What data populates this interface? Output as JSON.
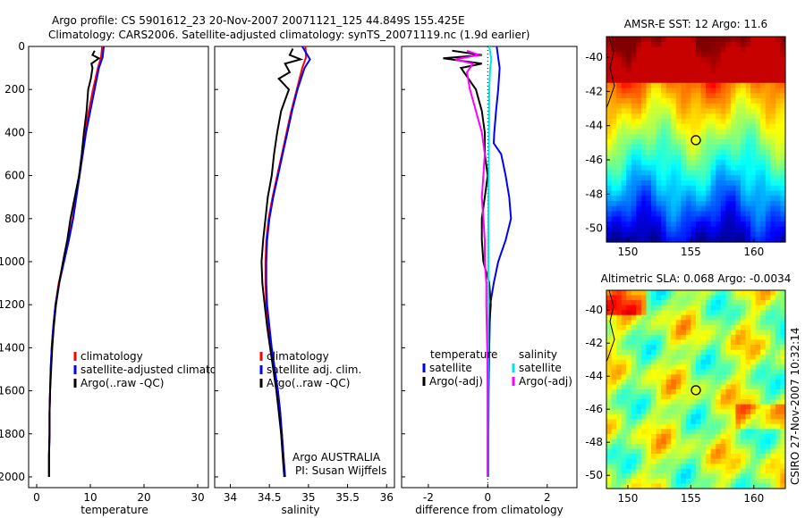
{
  "header": {
    "line1": "Argo profile: CS 5901612_23 20-Nov-2007 20071121_125 44.849S 155.425E",
    "line2": "Climatology: CARS2006. Satellite-adjusted climatology: synTS_20071119.nc (1.9d earlier)"
  },
  "credit": "CSIRO 27-Nov-2007 10:32:14",
  "chart_data": [
    {
      "type": "line",
      "xlabel": "temperature",
      "ylabel": "",
      "xlim": [
        -1.5,
        32
      ],
      "ylim": [
        2050,
        0
      ],
      "y_reversed": true,
      "xticks": [
        0,
        10,
        20,
        30
      ],
      "yticks": [
        0,
        200,
        400,
        600,
        800,
        1000,
        1200,
        1400,
        1600,
        1800,
        2000
      ],
      "legend": [
        "climatology",
        "satellite-adjusted climatology",
        "Argo(..raw -QC)"
      ],
      "series": [
        {
          "name": "climatology",
          "color": "#ff0000",
          "points": [
            [
              12.2,
              0
            ],
            [
              12.0,
              50
            ],
            [
              11.4,
              100
            ],
            [
              10.5,
              200
            ],
            [
              9.7,
              300
            ],
            [
              9.0,
              400
            ],
            [
              8.5,
              500
            ],
            [
              7.9,
              600
            ],
            [
              7.3,
              700
            ],
            [
              6.7,
              800
            ],
            [
              5.9,
              900
            ],
            [
              5.0,
              1000
            ],
            [
              4.1,
              1100
            ],
            [
              3.5,
              1200
            ],
            [
              3.1,
              1300
            ],
            [
              2.8,
              1400
            ],
            [
              2.6,
              1500
            ],
            [
              2.5,
              1600
            ],
            [
              2.4,
              1700
            ],
            [
              2.4,
              1800
            ],
            [
              2.3,
              1900
            ],
            [
              2.3,
              2000
            ]
          ]
        },
        {
          "name": "satellite-adjusted climatology",
          "color": "#0000ff",
          "points": [
            [
              12.5,
              0
            ],
            [
              12.3,
              50
            ],
            [
              11.6,
              100
            ],
            [
              10.8,
              200
            ],
            [
              10.0,
              300
            ],
            [
              9.2,
              400
            ],
            [
              8.6,
              500
            ],
            [
              8.0,
              600
            ],
            [
              7.4,
              700
            ],
            [
              6.8,
              800
            ],
            [
              6.0,
              900
            ],
            [
              5.1,
              1000
            ],
            [
              4.2,
              1100
            ],
            [
              3.5,
              1200
            ],
            [
              3.1,
              1300
            ],
            [
              2.8,
              1400
            ],
            [
              2.6,
              1500
            ],
            [
              2.5,
              1600
            ],
            [
              2.4,
              1700
            ],
            [
              2.4,
              1800
            ],
            [
              2.3,
              1900
            ],
            [
              2.3,
              2000
            ]
          ]
        },
        {
          "name": "Argo(..raw -QC)",
          "color": "#000000",
          "points": [
            [
              10.8,
              20
            ],
            [
              10.4,
              40
            ],
            [
              11.6,
              55
            ],
            [
              10.2,
              80
            ],
            [
              10.4,
              100
            ],
            [
              10.1,
              150
            ],
            [
              9.6,
              200
            ],
            [
              9.3,
              300
            ],
            [
              8.8,
              400
            ],
            [
              8.4,
              500
            ],
            [
              7.9,
              600
            ],
            [
              7.1,
              700
            ],
            [
              6.3,
              800
            ],
            [
              5.7,
              900
            ],
            [
              4.9,
              1000
            ],
            [
              4.2,
              1100
            ],
            [
              3.6,
              1200
            ],
            [
              3.2,
              1300
            ],
            [
              2.9,
              1400
            ],
            [
              2.7,
              1500
            ],
            [
              2.5,
              1600
            ],
            [
              2.4,
              1700
            ],
            [
              2.4,
              1800
            ],
            [
              2.3,
              1900
            ],
            [
              2.3,
              2000
            ]
          ]
        }
      ]
    },
    {
      "type": "line",
      "xlabel": "salinity",
      "ylabel": "",
      "xlim": [
        33.8,
        36.1
      ],
      "ylim": [
        2050,
        0
      ],
      "y_reversed": true,
      "xticks": [
        34,
        34.5,
        35,
        35.5,
        36
      ],
      "legend": [
        "climatology",
        "satellite adj. clim.",
        "Argo(..raw -QC)"
      ],
      "annotation": [
        "Argo AUSTRALIA",
        "PI: Susan Wijffels"
      ],
      "series": [
        {
          "name": "climatology",
          "color": "#ff0000",
          "points": [
            [
              34.96,
              0
            ],
            [
              34.97,
              50
            ],
            [
              34.92,
              100
            ],
            [
              34.85,
              200
            ],
            [
              34.78,
              300
            ],
            [
              34.72,
              400
            ],
            [
              34.66,
              500
            ],
            [
              34.6,
              600
            ],
            [
              34.54,
              700
            ],
            [
              34.49,
              800
            ],
            [
              34.46,
              900
            ],
            [
              34.45,
              1000
            ],
            [
              34.45,
              1100
            ],
            [
              34.46,
              1200
            ],
            [
              34.49,
              1300
            ],
            [
              34.52,
              1400
            ],
            [
              34.56,
              1500
            ],
            [
              34.6,
              1600
            ],
            [
              34.63,
              1700
            ],
            [
              34.66,
              1800
            ],
            [
              34.68,
              1900
            ],
            [
              34.7,
              2000
            ]
          ]
        },
        {
          "name": "satellite adj. clim.",
          "color": "#0000ff",
          "points": [
            [
              34.92,
              0
            ],
            [
              35.02,
              60
            ],
            [
              34.95,
              100
            ],
            [
              34.86,
              200
            ],
            [
              34.79,
              300
            ],
            [
              34.73,
              400
            ],
            [
              34.67,
              500
            ],
            [
              34.61,
              600
            ],
            [
              34.55,
              700
            ],
            [
              34.5,
              800
            ],
            [
              34.47,
              900
            ],
            [
              34.46,
              1000
            ],
            [
              34.46,
              1100
            ],
            [
              34.47,
              1200
            ],
            [
              34.5,
              1300
            ],
            [
              34.53,
              1400
            ],
            [
              34.57,
              1500
            ],
            [
              34.61,
              1600
            ],
            [
              34.64,
              1700
            ],
            [
              34.66,
              1800
            ],
            [
              34.68,
              1900
            ],
            [
              34.7,
              2000
            ]
          ]
        },
        {
          "name": "Argo(..raw -QC)",
          "color": "#000000",
          "points": [
            [
              34.8,
              10
            ],
            [
              34.76,
              40
            ],
            [
              34.9,
              60
            ],
            [
              34.7,
              80
            ],
            [
              34.76,
              120
            ],
            [
              34.62,
              150
            ],
            [
              34.75,
              200
            ],
            [
              34.65,
              300
            ],
            [
              34.6,
              400
            ],
            [
              34.56,
              500
            ],
            [
              34.53,
              600
            ],
            [
              34.48,
              700
            ],
            [
              34.45,
              800
            ],
            [
              34.42,
              900
            ],
            [
              34.4,
              1000
            ],
            [
              34.41,
              1100
            ],
            [
              34.44,
              1200
            ],
            [
              34.47,
              1300
            ],
            [
              34.51,
              1400
            ],
            [
              34.55,
              1500
            ],
            [
              34.59,
              1600
            ],
            [
              34.62,
              1700
            ],
            [
              34.65,
              1800
            ],
            [
              34.67,
              1900
            ],
            [
              34.69,
              2000
            ]
          ]
        }
      ]
    },
    {
      "type": "line",
      "xlabel": "difference from climatology",
      "ylabel": "",
      "xlim": [
        -2.9,
        3.0
      ],
      "ylim": [
        2050,
        0
      ],
      "y_reversed": true,
      "xticks": [
        -2,
        0,
        2
      ],
      "legend_title": [
        "temperature",
        "salinity"
      ],
      "legend": [
        "satellite",
        "Argo(-adj)",
        "satellite",
        "Argo(-adj)"
      ],
      "series": [
        {
          "name": "temperature satellite",
          "color": "#0000ff",
          "points": [
            [
              0.3,
              0
            ],
            [
              0.4,
              100
            ],
            [
              0.35,
              200
            ],
            [
              0.28,
              300
            ],
            [
              0.22,
              400
            ],
            [
              0.2,
              450
            ],
            [
              0.45,
              500
            ],
            [
              0.6,
              600
            ],
            [
              0.72,
              700
            ],
            [
              0.78,
              800
            ],
            [
              0.6,
              900
            ],
            [
              0.35,
              1000
            ],
            [
              0.2,
              1100
            ],
            [
              0.08,
              1200
            ],
            [
              0.05,
              1400
            ],
            [
              0.03,
              1600
            ],
            [
              0.02,
              1800
            ],
            [
              0.02,
              2000
            ]
          ]
        },
        {
          "name": "temperature Argo(-adj)",
          "color": "#000000",
          "points": [
            [
              -1.2,
              20
            ],
            [
              -0.2,
              40
            ],
            [
              -1.5,
              55
            ],
            [
              -0.2,
              80
            ],
            [
              -0.9,
              100
            ],
            [
              -0.4,
              200
            ],
            [
              -0.2,
              300
            ],
            [
              -0.1,
              400
            ],
            [
              -0.1,
              500
            ],
            [
              0.0,
              600
            ],
            [
              -0.1,
              700
            ],
            [
              -0.2,
              800
            ],
            [
              -0.2,
              900
            ],
            [
              -0.15,
              1000
            ],
            [
              0.05,
              1100
            ],
            [
              0.1,
              1200
            ],
            [
              0.05,
              1300
            ],
            [
              0.0,
              1400
            ],
            [
              0.0,
              1600
            ],
            [
              0.0,
              2000
            ]
          ]
        },
        {
          "name": "salinity satellite",
          "color": "#00e5e5",
          "points": [
            [
              0.05,
              0
            ],
            [
              0.12,
              60
            ],
            [
              0.08,
              100
            ],
            [
              0.05,
              200
            ],
            [
              0.04,
              400
            ],
            [
              0.03,
              600
            ],
            [
              0.02,
              800
            ],
            [
              0.02,
              1000
            ],
            [
              0.01,
              1400
            ],
            [
              0.01,
              2000
            ]
          ]
        },
        {
          "name": "salinity Argo(-adj)",
          "color": "#ff00ff",
          "points": [
            [
              -0.7,
              20
            ],
            [
              -0.3,
              40
            ],
            [
              -1.1,
              60
            ],
            [
              -0.5,
              80
            ],
            [
              -0.7,
              120
            ],
            [
              -0.6,
              200
            ],
            [
              -0.4,
              300
            ],
            [
              -0.2,
              400
            ],
            [
              -0.1,
              500
            ],
            [
              -0.15,
              600
            ],
            [
              -0.2,
              700
            ],
            [
              -0.15,
              800
            ],
            [
              -0.1,
              900
            ],
            [
              -0.1,
              1000
            ],
            [
              -0.05,
              1100
            ],
            [
              -0.05,
              1200
            ],
            [
              -0.02,
              1400
            ],
            [
              0.0,
              1600
            ],
            [
              0.0,
              2000
            ]
          ]
        }
      ]
    },
    {
      "type": "heatmap",
      "title": "AMSR-E SST: 12 Argo: 11.6",
      "xlim": [
        148.3,
        162.5
      ],
      "ylim": [
        -50.8,
        -38.8
      ],
      "xticks": [
        150,
        155,
        160
      ],
      "yticks": [
        -40,
        -42,
        -44,
        -46,
        -48,
        -50
      ],
      "marker": [
        155.4,
        -44.85
      ],
      "colormap": "jet"
    },
    {
      "type": "heatmap",
      "title": "Altimetric SLA: 0.068 Argo: -0.0034",
      "xlim": [
        148.3,
        162.5
      ],
      "ylim": [
        -50.8,
        -38.8
      ],
      "xticks": [
        150,
        155,
        160
      ],
      "yticks": [
        -40,
        -42,
        -44,
        -46,
        -48,
        -50
      ],
      "marker": [
        155.4,
        -44.85
      ],
      "colormap": "jet"
    }
  ]
}
